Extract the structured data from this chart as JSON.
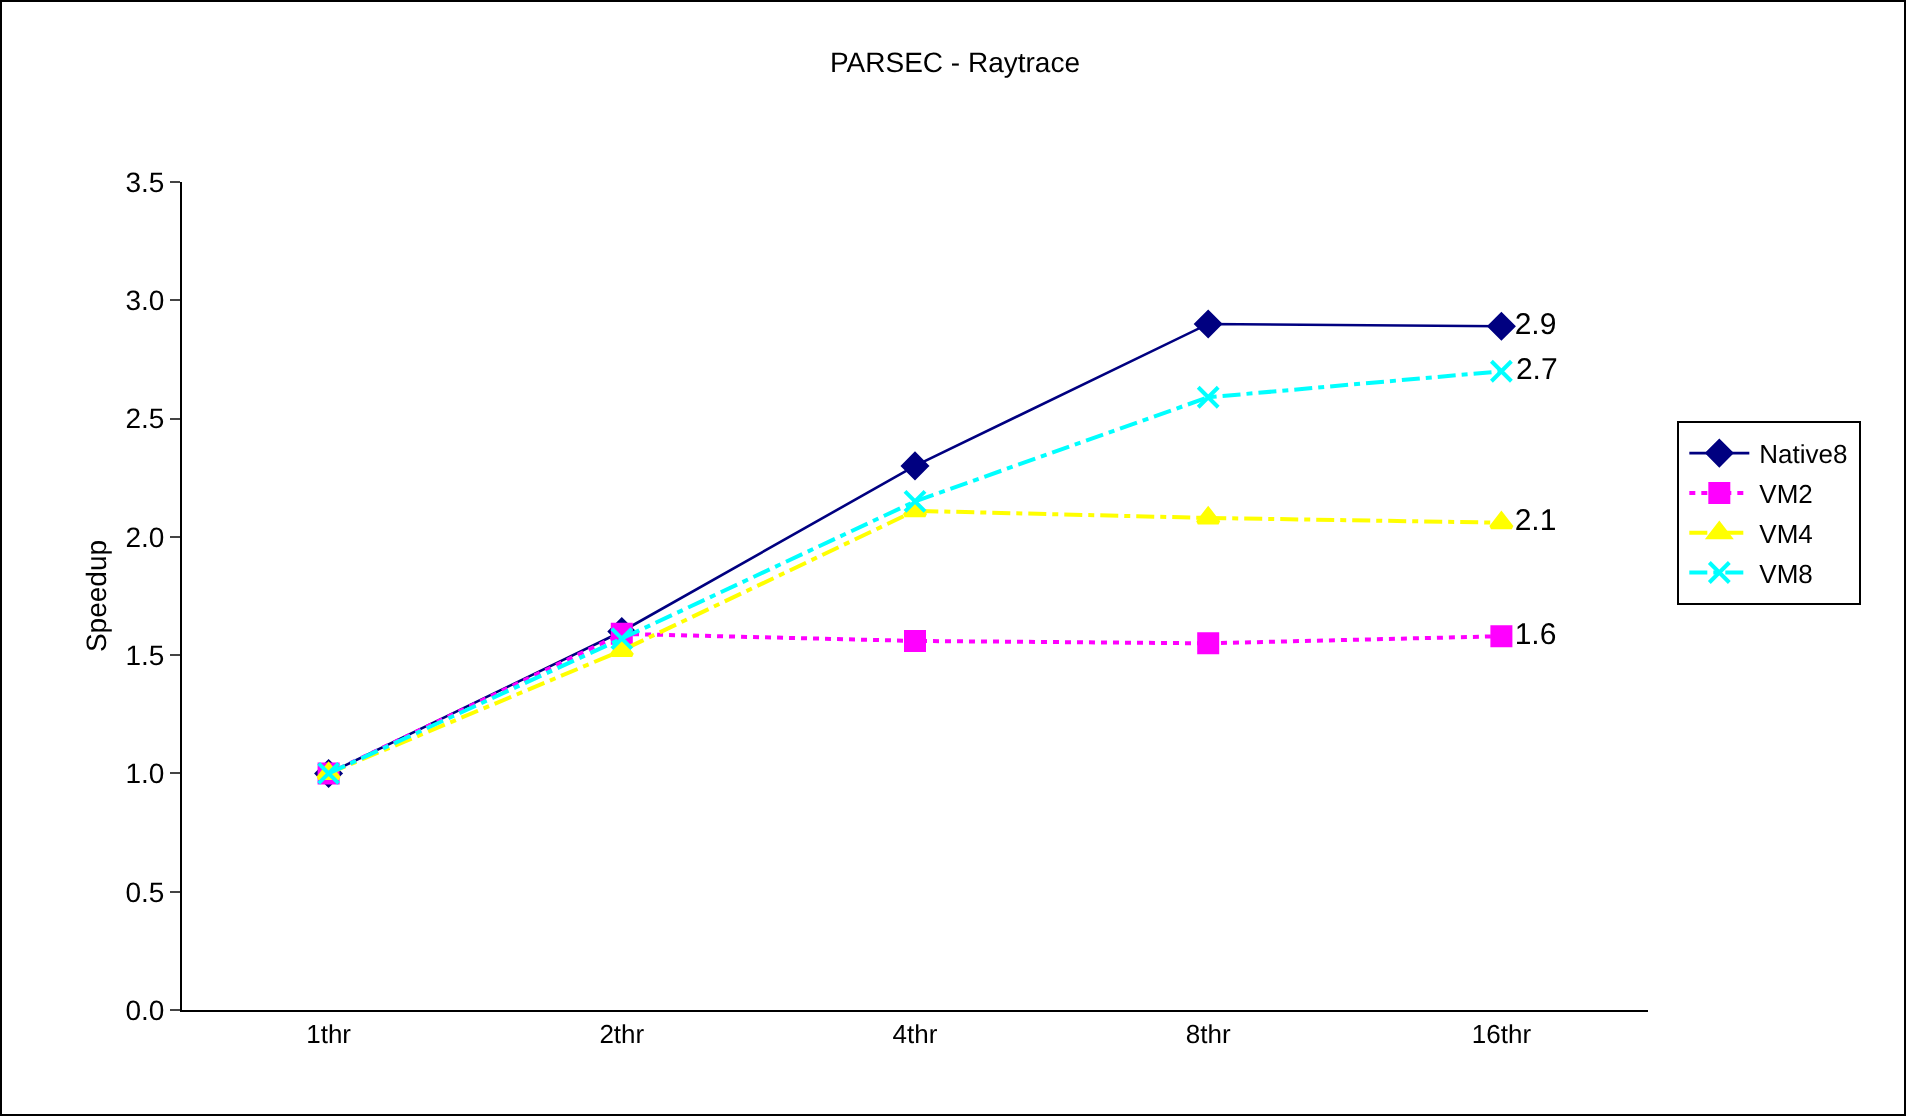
{
  "chart_data": {
    "type": "line",
    "title": "PARSEC - Raytrace",
    "ylabel": "Speedup",
    "categories": [
      "1thr",
      "2thr",
      "4thr",
      "8thr",
      "16thr"
    ],
    "ylim": [
      0,
      3.5
    ],
    "yticks": [
      {
        "value": 0,
        "label": "0.0"
      },
      {
        "value": 0.5,
        "label": "0.5"
      },
      {
        "value": 1,
        "label": "1.0"
      },
      {
        "value": 1.5,
        "label": "1.5"
      },
      {
        "value": 2,
        "label": "2.0"
      },
      {
        "value": 2.5,
        "label": "2.5"
      },
      {
        "value": 3,
        "label": "3.0"
      },
      {
        "value": 3.5,
        "label": "3.5"
      }
    ],
    "grid": false,
    "legend": "right",
    "series": [
      {
        "name": "Native8",
        "color": "#000080",
        "marker": "diamond",
        "line_style": "solid",
        "values": [
          1.0,
          1.6,
          2.3,
          2.9,
          2.89
        ],
        "value_labels": [
          null,
          null,
          null,
          null,
          "2.9"
        ]
      },
      {
        "name": "VM2",
        "color": "#ff00ff",
        "marker": "square",
        "line_style": "dotted",
        "values": [
          1.0,
          1.59,
          1.56,
          1.55,
          1.58
        ],
        "value_labels": [
          null,
          null,
          null,
          null,
          "1.6"
        ]
      },
      {
        "name": "VM4",
        "color": "#ffff00",
        "marker": "triangle",
        "line_style": "dashdot",
        "values": [
          1.0,
          1.52,
          2.11,
          2.08,
          2.06
        ],
        "value_labels": [
          null,
          null,
          null,
          null,
          "2.1"
        ]
      },
      {
        "name": "VM8",
        "color": "#00ffff",
        "marker": "cross",
        "line_style": "dashdot",
        "values": [
          1.0,
          1.57,
          2.15,
          2.59,
          2.7
        ],
        "value_labels": [
          null,
          null,
          null,
          null,
          "2.7"
        ]
      }
    ]
  }
}
